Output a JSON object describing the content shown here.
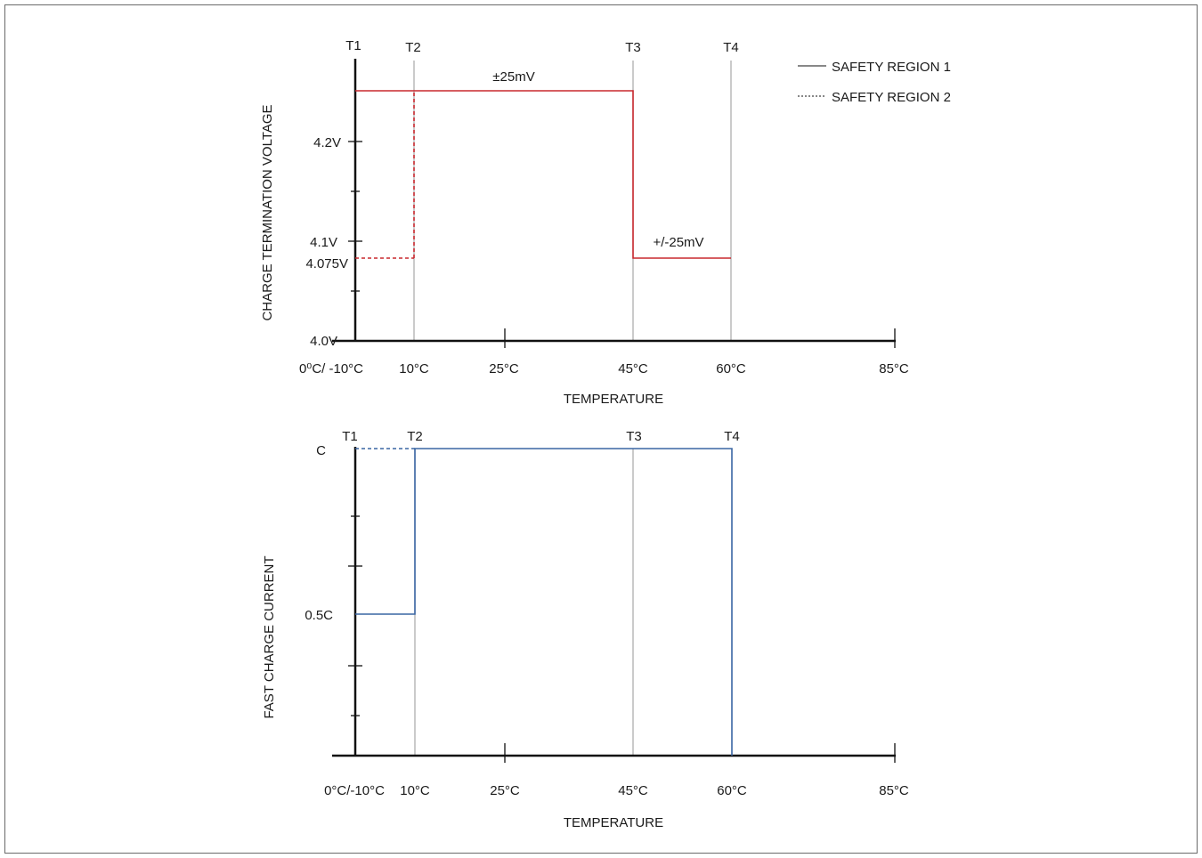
{
  "legend": {
    "solid_label": "SAFETY REGION 1",
    "dashed_label": "SAFETY REGION 2"
  },
  "top_chart": {
    "ylabel": "CHARGE TERMINATION VOLTAGE",
    "xlabel": "TEMPERATURE",
    "t_labels": [
      "T1",
      "T2",
      "T3",
      "T4"
    ],
    "y_ticks": [
      "4.2V",
      "4.1V",
      "4.075V",
      "4.0V"
    ],
    "x_ticks": [
      "0⁰C/ -10°C",
      "10°C",
      "25°C",
      "45°C",
      "60°C",
      "85°C"
    ],
    "annotation_high": "±25mV",
    "annotation_low": "+/-25mV"
  },
  "bottom_chart": {
    "ylabel": "FAST CHARGE CURRENT",
    "xlabel": "TEMPERATURE",
    "t_labels": [
      "T1",
      "T2",
      "T3",
      "T4"
    ],
    "y_ticks": [
      "C",
      "0.5C"
    ],
    "x_ticks": [
      "0°C/-10°C",
      "10°C",
      "25°C",
      "45°C",
      "60°C",
      "85°C"
    ]
  },
  "colors": {
    "voltage_line": "#c8282f",
    "current_line": "#3a66a3"
  }
}
